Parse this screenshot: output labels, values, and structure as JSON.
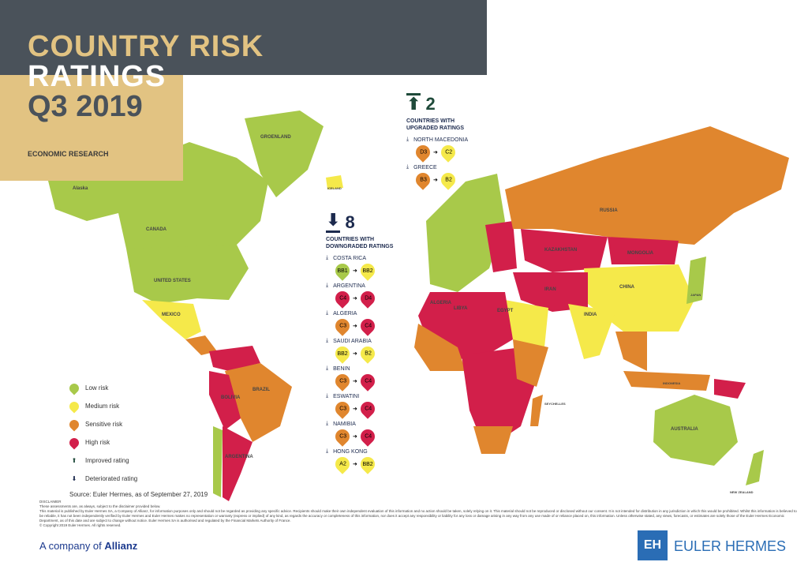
{
  "header": {
    "title_line1": "COUNTRY RISK",
    "title_line2": "RATINGS",
    "title_line3": "Q3 2019",
    "subtitle": "ECONOMIC RESEARCH"
  },
  "colors": {
    "low": "#a8c94a",
    "medium": "#f5e94a",
    "sensitive": "#e0862e",
    "high": "#d21f4a",
    "header": "#4a525a",
    "tan": "#e2c382",
    "navy": "#1c2a4e",
    "upgrade": "#1f4a3a"
  },
  "map_labels": [
    "Alaska",
    "CANADA",
    "GROENLAND",
    "ICELAND",
    "UNITED STATES",
    "MEXICO",
    "BRAZIL",
    "ARGENTINA",
    "BOLIVIA",
    "RUSSIA",
    "KAZAKHSTAN",
    "MONGOLIA",
    "CHINA",
    "INDIA",
    "IRAN",
    "LIBYA",
    "ALGERIA",
    "EGYPT",
    "AUSTRALIA",
    "INDONESIA",
    "JAPAN",
    "SEYCHELLES",
    "NEW ZEALAND"
  ],
  "downgraded": {
    "count": "8",
    "label": "COUNTRIES WITH DOWNGRADED RATINGS",
    "items": [
      {
        "country": "COSTA RICA",
        "from": "BB1",
        "to": "BB2",
        "from_risk": "low",
        "to_risk": "medium"
      },
      {
        "country": "ARGENTINA",
        "from": "C4",
        "to": "D4",
        "from_risk": "high",
        "to_risk": "high"
      },
      {
        "country": "ALGERIA",
        "from": "C3",
        "to": "C4",
        "from_risk": "sensitive",
        "to_risk": "high"
      },
      {
        "country": "SAUDI ARABIA",
        "from": "BB2",
        "to": "B2",
        "from_risk": "medium",
        "to_risk": "medium"
      },
      {
        "country": "BENIN",
        "from": "C3",
        "to": "C4",
        "from_risk": "sensitive",
        "to_risk": "high"
      },
      {
        "country": "ESWATINI",
        "from": "C3",
        "to": "C4",
        "from_risk": "sensitive",
        "to_risk": "high"
      },
      {
        "country": "NAMIBIA",
        "from": "C3",
        "to": "C4",
        "from_risk": "sensitive",
        "to_risk": "high"
      },
      {
        "country": "HONG KONG",
        "from": "A2",
        "to": "BB2",
        "from_risk": "medium",
        "to_risk": "medium"
      }
    ]
  },
  "upgraded": {
    "count": "2",
    "label": "COUNTRIES WITH UPGRADED RATINGS",
    "items": [
      {
        "country": "NORTH MACEDONIA",
        "from": "D3",
        "to": "C2",
        "from_risk": "sensitive",
        "to_risk": "medium"
      },
      {
        "country": "GREECE",
        "from": "B3",
        "to": "B2",
        "from_risk": "sensitive",
        "to_risk": "medium"
      }
    ]
  },
  "legend": [
    {
      "label": "Low risk",
      "risk": "low"
    },
    {
      "label": "Medium risk",
      "risk": "medium"
    },
    {
      "label": "Sensitive risk",
      "risk": "sensitive"
    },
    {
      "label": "High risk",
      "risk": "high"
    },
    {
      "label": "Improved rating",
      "icon": "arrow-up-icon"
    },
    {
      "label": "Deteriorated rating",
      "icon": "arrow-down-icon"
    }
  ],
  "source": "Source: Euler Hermes, as of September 27, 2019",
  "disclaimer": {
    "title": "DISCLAIMER",
    "lines": [
      "These assessments are, as always, subject to the disclaimer provided below.",
      "This material is published by Euler Hermes SA, a Company of Allianz, for information purposes only and should not be regarded as providing any specific advice. Recipients should make their own independent evaluation of this information and no action should be taken, solely relying on it. This material should not be reproduced or disclosed without our consent. It is not intended for distribution in any jurisdiction in which this would be prohibited. Whilst this information is believed to be reliable, it has not been independently verified by Euler Hermes and Euler Hermes makes no representation or warranty (express or implied) of any kind, as regards the accuracy or completeness of this information, nor does it accept any responsibility or liability for any loss or damage arising in any way from any use made of or reliance placed on, this information. Unless otherwise stated, any views, forecasts, or estimates are solely those of the Euler Hermes Economic Department, as of this date and are subject to change without notice. Euler Hermes SA is authorised and regulated by the Financial Markets Authority of France.",
      "© Copyright 2019 Euler Hermes. All rights reserved."
    ]
  },
  "footer": {
    "company_prefix": "A company of",
    "company_name": "Allianz",
    "brand": "EULER HERMES",
    "brand_logo": "EH"
  }
}
